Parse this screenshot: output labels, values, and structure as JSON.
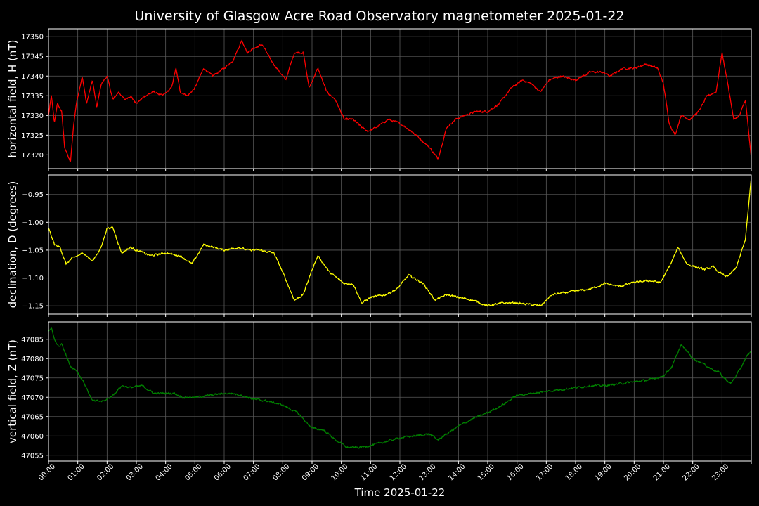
{
  "chart_data": {
    "type": "line",
    "title": "University of Glasgow Acre Road Observatory magnetometer 2025-01-22",
    "xlabel": "Time 2025-01-22",
    "x_tick_labels": [
      "00:00",
      "01:00",
      "02:00",
      "03:00",
      "04:00",
      "05:00",
      "06:00",
      "07:00",
      "08:00",
      "09:00",
      "10:00",
      "11:00",
      "12:00",
      "13:00",
      "14:00",
      "15:00",
      "16:00",
      "17:00",
      "18:00",
      "19:00",
      "20:00",
      "21:00",
      "22:00",
      "23:00"
    ],
    "xlim_hours": [
      0,
      24
    ],
    "grid": true,
    "background": "#000000",
    "grid_color": "#5a5a5a",
    "text_color": "#ffffff",
    "panels": [
      {
        "name": "H",
        "ylabel": "horizontal field, H (nT)",
        "color": "#ff0000",
        "ylim": [
          17316.5,
          17352
        ],
        "yticks": [
          17320,
          17325,
          17330,
          17335,
          17340,
          17345,
          17350
        ],
        "ytick_labels": [
          "17320",
          "17325",
          "17330",
          "17335",
          "17340",
          "17345",
          "17350"
        ],
        "x_hours": [
          0.0,
          0.1,
          0.2,
          0.3,
          0.45,
          0.55,
          0.75,
          0.85,
          0.95,
          1.15,
          1.3,
          1.5,
          1.65,
          1.8,
          2.0,
          2.2,
          2.4,
          2.6,
          2.8,
          3.0,
          3.3,
          3.6,
          3.9,
          4.2,
          4.35,
          4.5,
          4.75,
          5.0,
          5.3,
          5.6,
          6.0,
          6.3,
          6.6,
          6.8,
          7.0,
          7.3,
          7.6,
          7.9,
          8.1,
          8.4,
          8.7,
          8.9,
          9.2,
          9.5,
          9.8,
          10.1,
          10.4,
          10.7,
          10.9,
          11.2,
          11.6,
          12.0,
          12.4,
          12.7,
          13.0,
          13.3,
          13.6,
          13.9,
          14.2,
          14.6,
          15.0,
          15.4,
          15.8,
          16.2,
          16.5,
          16.8,
          17.1,
          17.5,
          18.0,
          18.5,
          18.9,
          19.2,
          19.6,
          20.0,
          20.4,
          20.8,
          21.0,
          21.2,
          21.4,
          21.6,
          21.9,
          22.2,
          22.5,
          22.8,
          23.0,
          23.2,
          23.4,
          23.6,
          23.8,
          24.0
        ],
        "values": [
          17330,
          17335,
          17328,
          17333,
          17331,
          17322,
          17318,
          17327,
          17333,
          17340,
          17333,
          17339,
          17332,
          17338,
          17340,
          17334,
          17336,
          17334,
          17335,
          17333,
          17335,
          17336,
          17335,
          17337,
          17342,
          17336,
          17335,
          17337,
          17342,
          17340,
          17342,
          17344,
          17349,
          17346,
          17347,
          17348,
          17344,
          17341,
          17339,
          17346,
          17346,
          17337,
          17342,
          17336,
          17334,
          17329,
          17329,
          17327,
          17326,
          17327,
          17329,
          17328,
          17326,
          17324,
          17322,
          17319,
          17327,
          17329,
          17330,
          17331,
          17331,
          17333,
          17337,
          17339,
          17338,
          17336,
          17339,
          17340,
          17339,
          17341,
          17341,
          17340,
          17342,
          17342,
          17343,
          17342,
          17338,
          17328,
          17325,
          17330,
          17329,
          17331,
          17335,
          17336,
          17346,
          17338,
          17329,
          17330,
          17334,
          17319
        ]
      },
      {
        "name": "D",
        "ylabel": "declination, D (degrees)",
        "color": "#ffff00",
        "ylim": [
          -1.165,
          -0.915
        ],
        "yticks": [
          -1.15,
          -1.1,
          -1.05,
          -1.0,
          -0.95
        ],
        "ytick_labels": [
          "−1.15",
          "−1.10",
          "−1.05",
          "−1.00",
          "−0.95"
        ],
        "x_hours": [
          0.0,
          0.2,
          0.4,
          0.6,
          0.8,
          1.0,
          1.2,
          1.5,
          1.8,
          2.0,
          2.2,
          2.5,
          2.8,
          3.0,
          3.5,
          4.0,
          4.5,
          4.9,
          5.3,
          6.0,
          6.5,
          6.8,
          7.2,
          7.7,
          8.0,
          8.4,
          8.7,
          9.0,
          9.2,
          9.6,
          10.1,
          10.4,
          10.7,
          11.0,
          11.5,
          11.9,
          12.3,
          12.8,
          13.2,
          13.6,
          14.0,
          14.5,
          15.0,
          15.5,
          16.0,
          16.8,
          17.2,
          17.8,
          18.5,
          19.0,
          19.5,
          20.0,
          20.5,
          20.9,
          21.2,
          21.5,
          21.8,
          22.1,
          22.4,
          22.7,
          22.9,
          23.2,
          23.5,
          23.8,
          24.0
        ],
        "values": [
          -1.01,
          -1.04,
          -1.045,
          -1.075,
          -1.065,
          -1.06,
          -1.055,
          -1.07,
          -1.045,
          -1.01,
          -1.01,
          -1.055,
          -1.045,
          -1.05,
          -1.06,
          -1.055,
          -1.06,
          -1.075,
          -1.04,
          -1.05,
          -1.045,
          -1.05,
          -1.05,
          -1.055,
          -1.09,
          -1.14,
          -1.13,
          -1.085,
          -1.06,
          -1.09,
          -1.11,
          -1.11,
          -1.145,
          -1.135,
          -1.13,
          -1.12,
          -1.095,
          -1.11,
          -1.14,
          -1.13,
          -1.135,
          -1.14,
          -1.15,
          -1.145,
          -1.145,
          -1.15,
          -1.13,
          -1.125,
          -1.12,
          -1.11,
          -1.115,
          -1.108,
          -1.105,
          -1.108,
          -1.08,
          -1.045,
          -1.075,
          -1.08,
          -1.085,
          -1.08,
          -1.09,
          -1.098,
          -1.08,
          -1.03,
          -0.92
        ]
      },
      {
        "name": "Z",
        "ylabel": "vertical field, Z (nT)",
        "color": "#008000",
        "ylim": [
          47053.5,
          47089.5
        ],
        "yticks": [
          47055,
          47060,
          47065,
          47070,
          47075,
          47080,
          47085
        ],
        "ytick_labels": [
          "47055",
          "47060",
          "47065",
          "47070",
          "47075",
          "47080",
          "47085"
        ],
        "x_hours": [
          0.0,
          0.1,
          0.2,
          0.35,
          0.45,
          0.6,
          0.75,
          0.95,
          1.2,
          1.5,
          1.7,
          1.9,
          2.2,
          2.5,
          2.8,
          3.2,
          3.6,
          4.0,
          4.3,
          4.6,
          5.0,
          5.5,
          6.0,
          6.3,
          6.6,
          7.0,
          7.5,
          8.0,
          8.5,
          9.0,
          9.4,
          9.8,
          10.2,
          10.6,
          11.0,
          11.5,
          12.0,
          12.5,
          13.0,
          13.3,
          13.6,
          14.0,
          14.5,
          15.0,
          15.5,
          16.0,
          16.5,
          17.0,
          17.5,
          18.0,
          18.5,
          19.0,
          19.5,
          20.0,
          20.5,
          21.0,
          21.3,
          21.6,
          21.8,
          22.0,
          22.3,
          22.6,
          22.9,
          23.0,
          23.3,
          23.6,
          23.8,
          24.0
        ],
        "values": [
          47087,
          47088,
          47085,
          47083,
          47084,
          47081,
          47078,
          47077,
          47074,
          47069,
          47069,
          47069,
          47070.5,
          47073,
          47072.5,
          47073,
          47071,
          47071,
          47071,
          47070,
          47070,
          47070.5,
          47071,
          47071,
          47070.5,
          47069.5,
          47069,
          47068,
          47066,
          47062,
          47061.5,
          47059,
          47057,
          47057,
          47057.5,
          47058.5,
          47059.5,
          47060,
          47060.5,
          47059,
          47060.5,
          47062.5,
          47064.5,
          47066,
          47068,
          47070.5,
          47071,
          47071.5,
          47072,
          47072.5,
          47073,
          47073,
          47073.5,
          47074,
          47074.5,
          47075.5,
          47078,
          47083.5,
          47082,
          47080,
          47079,
          47077.5,
          47076.5,
          47075.5,
          47073.5,
          47077,
          47080,
          47082
        ]
      }
    ]
  }
}
